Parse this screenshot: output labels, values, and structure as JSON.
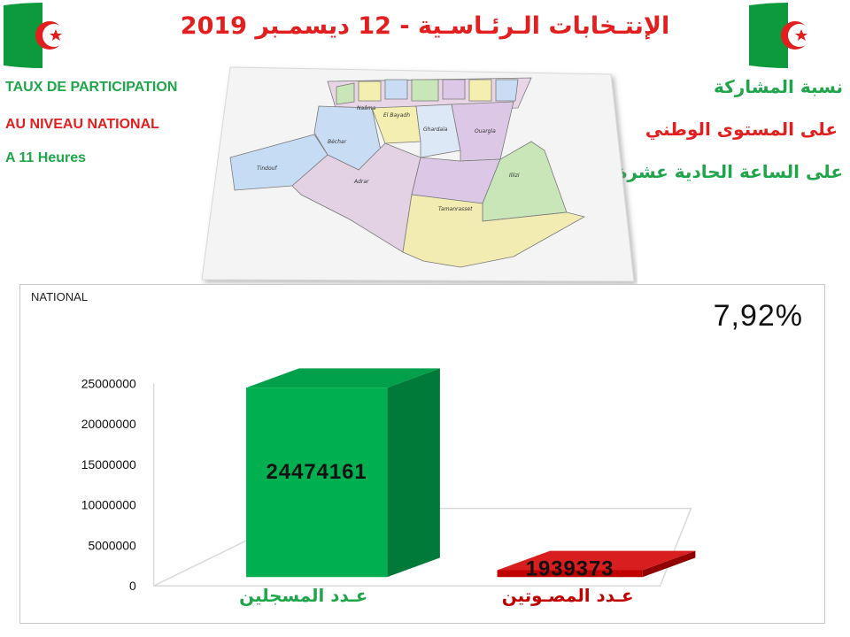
{
  "header": {
    "title": "الإنتـخابات الـرئـاسـية - 12 ديسمـبر 2019"
  },
  "left_info": {
    "line1": "TAUX DE PARTICIPATION",
    "line2": "AU NIVEAU NATIONAL",
    "line3": "A 11 Heures"
  },
  "right_info": {
    "line1": "نسبة المشاركة",
    "line2": "على المستوى الوطني",
    "line3": "على الساعة الحادية عشرة"
  },
  "map": {
    "regions": [
      "El Bayadh",
      "Béchar",
      "Adrar",
      "Ghardaïa",
      "Ouargla",
      "Illizi",
      "Tamanrasset",
      "Tindouf",
      "Naâma"
    ]
  },
  "colors": {
    "title_red": "#e31e1e",
    "green_text": "#1fa64a",
    "bar_green": "#00b050",
    "bar_red": "#c00000"
  },
  "chart_data": {
    "type": "bar",
    "title": "NATIONAL",
    "participation_rate": "7,92%",
    "categories": [
      "عـدد المسجلين",
      "عـدد المصـوتين"
    ],
    "values": [
      24474161,
      1939373
    ],
    "value_labels": [
      "24474161",
      "1939373"
    ],
    "yticks": [
      "0",
      "5000000",
      "10000000",
      "15000000",
      "20000000",
      "25000000"
    ],
    "ylim": [
      0,
      25000000
    ],
    "legend": "none",
    "grid": false
  }
}
